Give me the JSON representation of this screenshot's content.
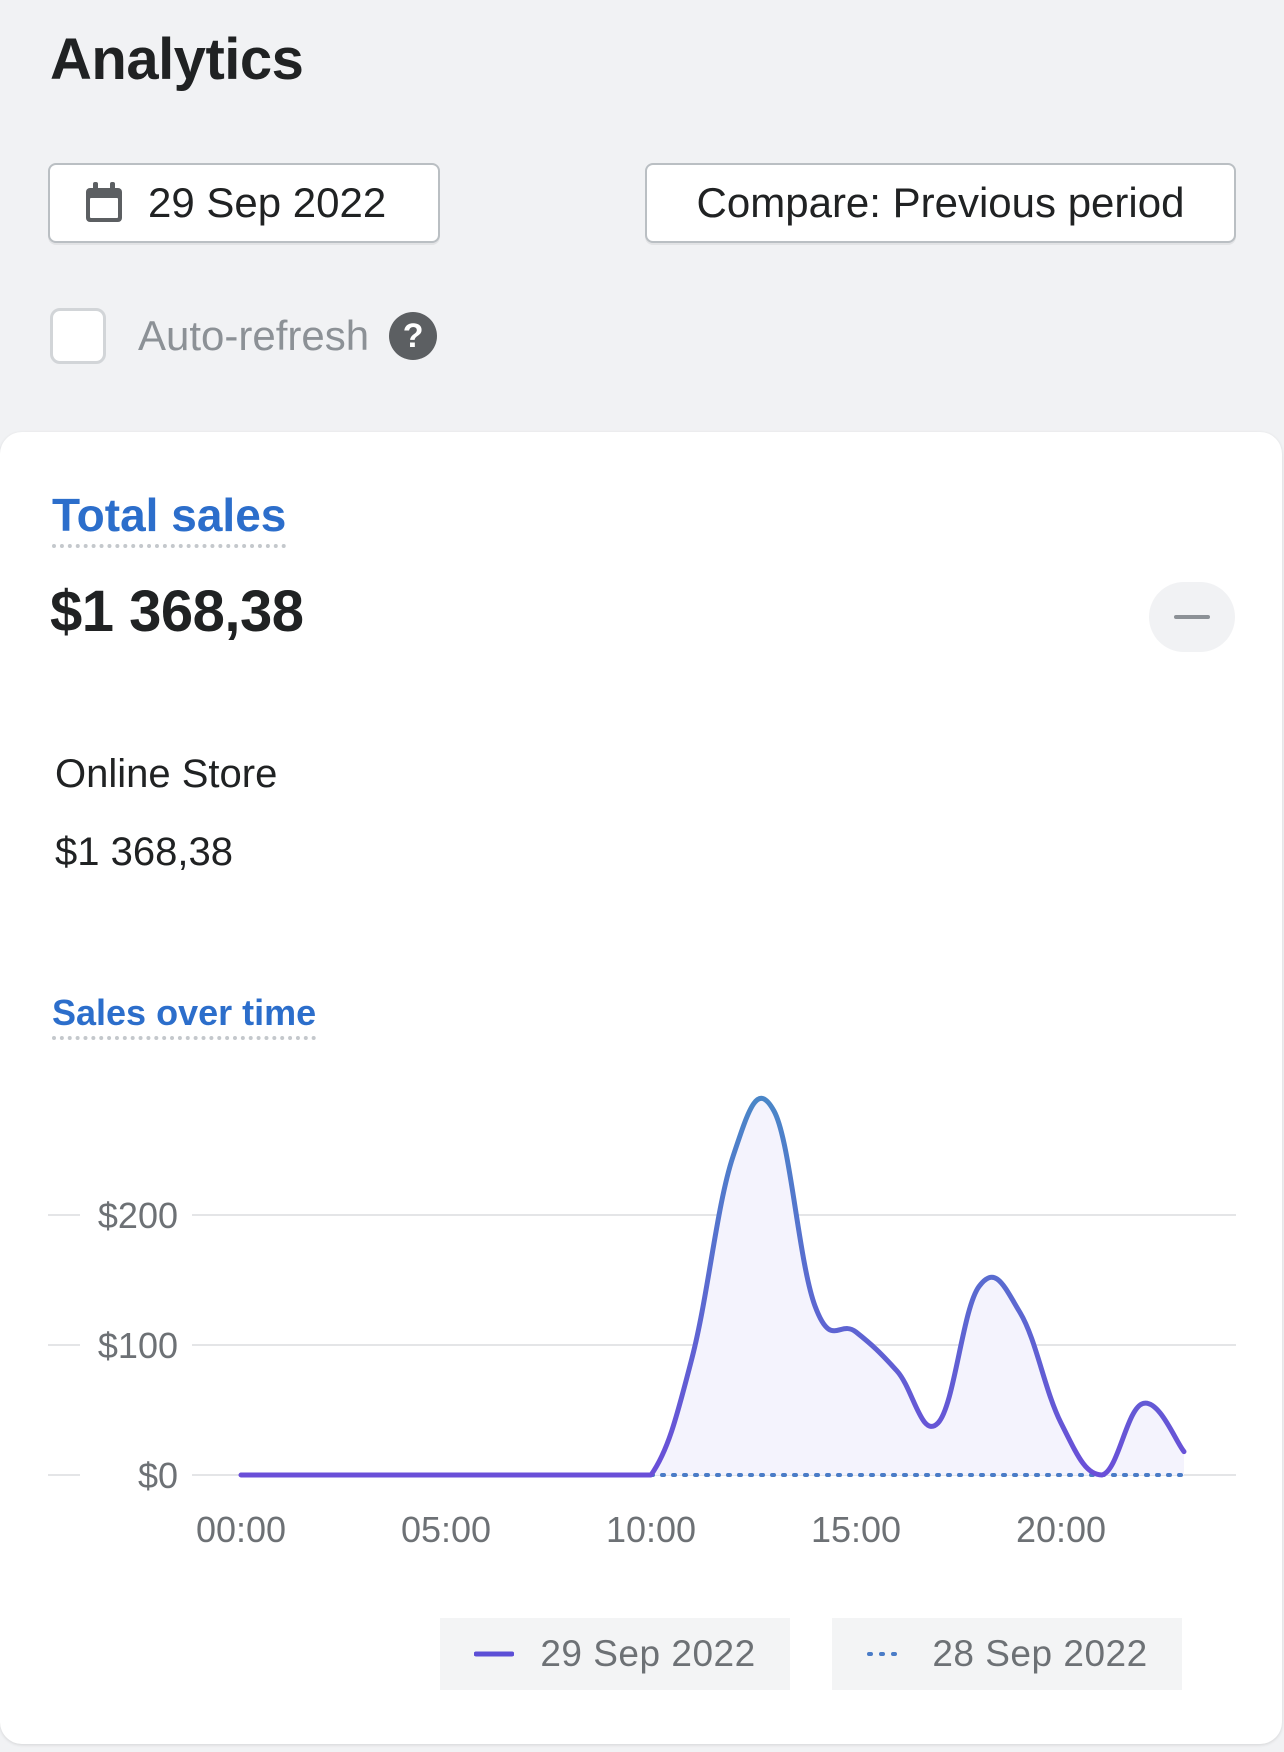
{
  "header": {
    "title": "Analytics",
    "date_label": "29 Sep 2022",
    "compare_label": "Compare: Previous period",
    "auto_refresh_label": "Auto-refresh",
    "auto_refresh_checked": false,
    "help_glyph": "?"
  },
  "total_sales": {
    "title": "Total sales",
    "value": "$1 368,38",
    "channel_name": "Online Store",
    "channel_value": "$1 368,38"
  },
  "colors": {
    "accent_link": "#2c6ecb",
    "series_current": "#5c4fd6",
    "series_previous": "#4a7cc7"
  },
  "icons": {
    "date": "calendar-icon",
    "help": "question-circle-icon",
    "collapse": "minus-icon"
  },
  "chart_data": {
    "type": "line",
    "title": "Sales over time",
    "x": [
      "00:00",
      "01:00",
      "02:00",
      "03:00",
      "04:00",
      "05:00",
      "06:00",
      "07:00",
      "08:00",
      "09:00",
      "10:00",
      "11:00",
      "12:00",
      "13:00",
      "14:00",
      "15:00",
      "16:00",
      "17:00",
      "18:00",
      "19:00",
      "20:00",
      "21:00",
      "22:00",
      "23:00"
    ],
    "x_ticks": [
      "00:00",
      "05:00",
      "10:00",
      "15:00",
      "20:00"
    ],
    "y_ticks": [
      "$200",
      "$100",
      "$0"
    ],
    "y_tick_values": [
      200,
      100,
      0
    ],
    "ylim": [
      0,
      300
    ],
    "series": [
      {
        "name": "29 Sep 2022",
        "style": "solid",
        "values": [
          0,
          0,
          0,
          0,
          0,
          0,
          0,
          0,
          0,
          0,
          0,
          90,
          245,
          280,
          130,
          110,
          80,
          40,
          145,
          125,
          40,
          0,
          55,
          18
        ]
      },
      {
        "name": "28 Sep 2022",
        "style": "dotted",
        "values": [
          0,
          0,
          0,
          0,
          0,
          0,
          0,
          0,
          0,
          0,
          0,
          0,
          0,
          0,
          0,
          0,
          0,
          0,
          0,
          0,
          0,
          0,
          0,
          0
        ]
      }
    ],
    "grid": true,
    "legend_position": "bottom-right"
  }
}
